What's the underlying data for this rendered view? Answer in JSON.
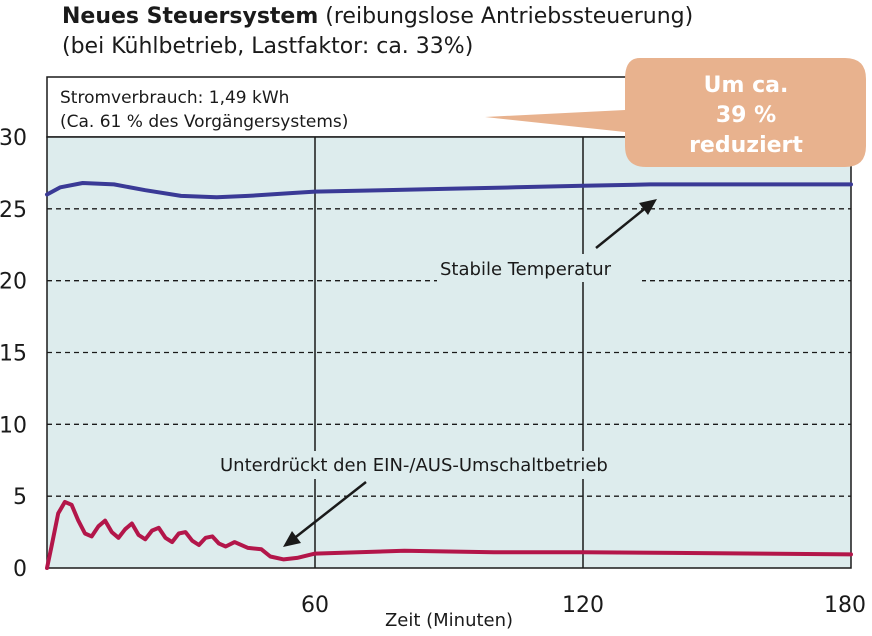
{
  "chart_data": {
    "type": "line",
    "title": "Neues Steuersystem",
    "title_suffix": "(reibungslose Antriebssteuerung)",
    "subtitle": "(bei Kühlbetrieb, Lastfaktor: ca. 33%)",
    "xlabel": "Zeit (Minuten)",
    "ylabel": "",
    "xlim": [
      0,
      180
    ],
    "ylim": [
      0,
      30
    ],
    "x_ticks": [
      60,
      120,
      180
    ],
    "y_ticks": [
      0,
      5,
      10,
      15,
      20,
      25,
      30
    ],
    "grid": {
      "horizontal": "dashed",
      "vertical": "solid"
    },
    "info_box": {
      "line1": "Stromverbrauch: 1,49 kWh",
      "line2": "(Ca. 61 % des Vorgängersystems)"
    },
    "callout": {
      "line1": "Um ca.",
      "line2": "39 %",
      "line3": "reduziert"
    },
    "annotations": {
      "temperature": "Stabile Temperatur",
      "power": "Unterdrückt den EIN-/AUS-Umschaltbetrieb"
    },
    "series": [
      {
        "color": "#3a3a96",
        "x": [
          0,
          3,
          8,
          15,
          22,
          30,
          38,
          45,
          55,
          60,
          75,
          90,
          105,
          120,
          135,
          150,
          165,
          180
        ],
        "y": [
          26.0,
          26.5,
          26.8,
          26.7,
          26.3,
          25.9,
          25.8,
          25.9,
          26.1,
          26.2,
          26.3,
          26.4,
          26.5,
          26.6,
          26.7,
          26.7,
          26.7,
          26.7
        ]
      },
      {
        "color": "#b3164a",
        "x": [
          0,
          1,
          2.5,
          4,
          5.5,
          7,
          8.5,
          10,
          11.5,
          13,
          14.5,
          16,
          17.5,
          19,
          20.5,
          22,
          23.5,
          25,
          26.5,
          28,
          29.5,
          31,
          32.5,
          34,
          35.5,
          37,
          38.5,
          40,
          42,
          45,
          48,
          50,
          53,
          56,
          60,
          80,
          100,
          120,
          140,
          160,
          180
        ],
        "y": [
          0.0,
          1.5,
          3.8,
          4.6,
          4.4,
          3.3,
          2.4,
          2.2,
          2.9,
          3.3,
          2.5,
          2.1,
          2.7,
          3.1,
          2.3,
          2.0,
          2.6,
          2.8,
          2.1,
          1.8,
          2.4,
          2.5,
          1.9,
          1.6,
          2.1,
          2.2,
          1.7,
          1.5,
          1.8,
          1.4,
          1.3,
          0.8,
          0.6,
          0.7,
          1.0,
          1.2,
          1.1,
          1.1,
          1.05,
          1.0,
          0.95
        ]
      }
    ]
  }
}
